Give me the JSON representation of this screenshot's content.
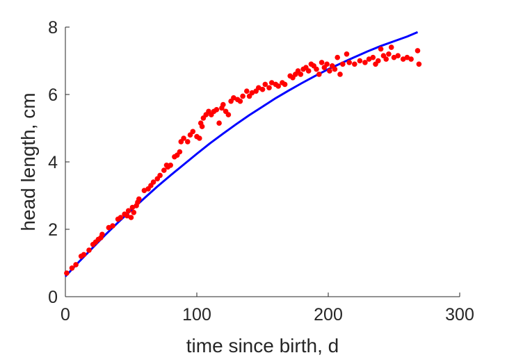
{
  "chart_data": {
    "type": "scatter",
    "title": "",
    "xlabel": "time since birth, d",
    "ylabel": "head length, cm",
    "xlim": [
      0,
      300
    ],
    "ylim": [
      0,
      8
    ],
    "xticks": [
      "0",
      "100",
      "200",
      "300"
    ],
    "yticks": [
      "0",
      "2",
      "4",
      "6",
      "8"
    ],
    "grid": false,
    "legend": "none",
    "colors": {
      "points": "#ff0000",
      "fit": "#0000ff",
      "axis": "#262626"
    },
    "series": [
      {
        "kind": "points",
        "points": [
          [
            1,
            0.7
          ],
          [
            5,
            0.85
          ],
          [
            8,
            0.95
          ],
          [
            12,
            1.2
          ],
          [
            14,
            1.25
          ],
          [
            18,
            1.38
          ],
          [
            21,
            1.55
          ],
          [
            23,
            1.62
          ],
          [
            25,
            1.7
          ],
          [
            27,
            1.75
          ],
          [
            28,
            1.85
          ],
          [
            33,
            2.05
          ],
          [
            36,
            2.1
          ],
          [
            40,
            2.3
          ],
          [
            42,
            2.35
          ],
          [
            45,
            2.45
          ],
          [
            47,
            2.4
          ],
          [
            48,
            2.55
          ],
          [
            50,
            2.35
          ],
          [
            51,
            2.65
          ],
          [
            52,
            2.5
          ],
          [
            54,
            2.7
          ],
          [
            55,
            2.8
          ],
          [
            56,
            2.9
          ],
          [
            60,
            3.15
          ],
          [
            63,
            3.2
          ],
          [
            65,
            3.3
          ],
          [
            67,
            3.4
          ],
          [
            70,
            3.5
          ],
          [
            72,
            3.6
          ],
          [
            75,
            3.75
          ],
          [
            77,
            3.9
          ],
          [
            78,
            3.85
          ],
          [
            80,
            3.9
          ],
          [
            83,
            4.15
          ],
          [
            85,
            4.2
          ],
          [
            87,
            4.3
          ],
          [
            88,
            4.6
          ],
          [
            90,
            4.7
          ],
          [
            93,
            4.6
          ],
          [
            95,
            4.8
          ],
          [
            97,
            4.9
          ],
          [
            100,
            4.75
          ],
          [
            102,
            4.7
          ],
          [
            103,
            5.15
          ],
          [
            104,
            5.05
          ],
          [
            105,
            5.3
          ],
          [
            107,
            5.4
          ],
          [
            109,
            5.5
          ],
          [
            111,
            5.4
          ],
          [
            113,
            5.5
          ],
          [
            115,
            5.55
          ],
          [
            117,
            5.15
          ],
          [
            119,
            5.6
          ],
          [
            120,
            5.7
          ],
          [
            122,
            5.5
          ],
          [
            124,
            5.4
          ],
          [
            126,
            5.8
          ],
          [
            128,
            5.9
          ],
          [
            131,
            5.85
          ],
          [
            133,
            5.8
          ],
          [
            135,
            5.95
          ],
          [
            138,
            6.1
          ],
          [
            140,
            5.95
          ],
          [
            142,
            6.05
          ],
          [
            145,
            6.1
          ],
          [
            147,
            6.2
          ],
          [
            150,
            6.15
          ],
          [
            152,
            6.3
          ],
          [
            155,
            6.2
          ],
          [
            157,
            6.35
          ],
          [
            160,
            6.3
          ],
          [
            162,
            6.25
          ],
          [
            165,
            6.35
          ],
          [
            167,
            6.3
          ],
          [
            171,
            6.55
          ],
          [
            173,
            6.5
          ],
          [
            175,
            6.6
          ],
          [
            177,
            6.7
          ],
          [
            179,
            6.6
          ],
          [
            181,
            6.75
          ],
          [
            183,
            6.8
          ],
          [
            185,
            6.7
          ],
          [
            187,
            6.9
          ],
          [
            189,
            6.85
          ],
          [
            191,
            6.75
          ],
          [
            193,
            6.6
          ],
          [
            195,
            6.95
          ],
          [
            197,
            6.8
          ],
          [
            199,
            6.9
          ],
          [
            201,
            6.7
          ],
          [
            203,
            6.85
          ],
          [
            205,
            6.75
          ],
          [
            207,
            7.1
          ],
          [
            209,
            6.6
          ],
          [
            211,
            6.9
          ],
          [
            214,
            7.2
          ],
          [
            216,
            6.95
          ],
          [
            220,
            6.9
          ],
          [
            224,
            7.0
          ],
          [
            228,
            6.95
          ],
          [
            231,
            7.05
          ],
          [
            234,
            7.1
          ],
          [
            236,
            6.9
          ],
          [
            238,
            7.0
          ],
          [
            240,
            7.35
          ],
          [
            242,
            7.15
          ],
          [
            244,
            7.05
          ],
          [
            246,
            7.2
          ],
          [
            248,
            7.4
          ],
          [
            250,
            7.1
          ],
          [
            253,
            7.15
          ],
          [
            257,
            7.05
          ],
          [
            260,
            7.1
          ],
          [
            263,
            7.05
          ],
          [
            268,
            7.3
          ],
          [
            269,
            6.9
          ]
        ]
      },
      {
        "kind": "fit_curve",
        "points": [
          [
            0,
            0.6
          ],
          [
            10,
            1.02
          ],
          [
            20,
            1.42
          ],
          [
            30,
            1.82
          ],
          [
            40,
            2.2
          ],
          [
            50,
            2.56
          ],
          [
            60,
            2.92
          ],
          [
            70,
            3.27
          ],
          [
            80,
            3.6
          ],
          [
            90,
            3.92
          ],
          [
            100,
            4.24
          ],
          [
            110,
            4.55
          ],
          [
            120,
            4.84
          ],
          [
            130,
            5.12
          ],
          [
            140,
            5.39
          ],
          [
            150,
            5.64
          ],
          [
            160,
            5.89
          ],
          [
            170,
            6.12
          ],
          [
            180,
            6.34
          ],
          [
            190,
            6.55
          ],
          [
            200,
            6.75
          ],
          [
            210,
            6.93
          ],
          [
            220,
            7.11
          ],
          [
            230,
            7.28
          ],
          [
            240,
            7.44
          ],
          [
            250,
            7.58
          ],
          [
            260,
            7.72
          ],
          [
            268,
            7.85
          ]
        ]
      }
    ]
  }
}
